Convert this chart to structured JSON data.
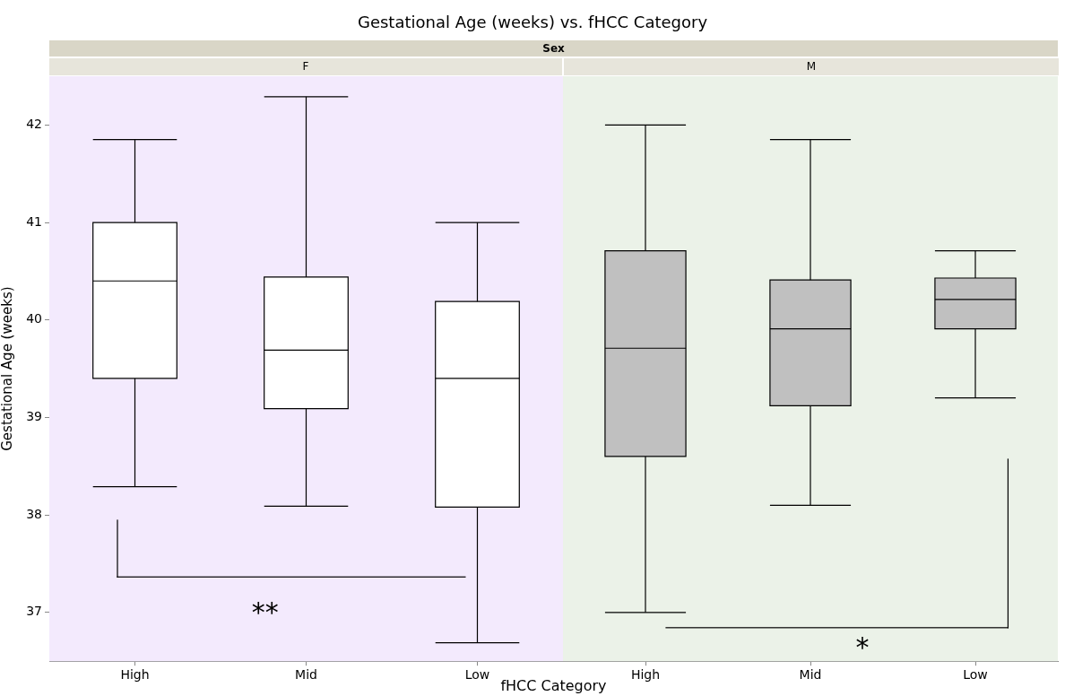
{
  "chart_data": [
    {
      "type": "box",
      "title": "Gestational Age (weeks) vs. fHCC Category",
      "subtitle": "Sex",
      "x2label": "F",
      "xlabel": "fHCC Category",
      "ylabel": "Gestational Age (weeks)",
      "categories": [
        "High",
        "Mid",
        "Low"
      ],
      "color": "#ffffff",
      "boxes": [
        {
          "low": 38.29,
          "q1": 39.4,
          "median": 40.4,
          "q3": 41.0,
          "high": 41.85
        },
        {
          "low": 38.09,
          "q1": 39.09,
          "median": 39.69,
          "q3": 40.44,
          "high": 42.29
        },
        {
          "low": 36.69,
          "q1": 38.08,
          "median": 39.4,
          "q3": 40.19,
          "high": 41.0
        }
      ],
      "ylim": [
        36.5,
        42.5
      ],
      "yticks": [
        37,
        38,
        39,
        40,
        41,
        42
      ],
      "annotations": [
        "**"
      ]
    },
    {
      "type": "box",
      "x2label": "M",
      "categories": [
        "High",
        "Mid",
        "Low"
      ],
      "color": "#c0c0c0",
      "boxes": [
        {
          "low": 37.0,
          "q1": 38.6,
          "median": 39.71,
          "q3": 40.71,
          "high": 42.0
        },
        {
          "low": 38.1,
          "q1": 39.12,
          "median": 39.91,
          "q3": 40.41,
          "high": 41.85
        },
        {
          "low": 39.2,
          "q1": 39.91,
          "median": 40.21,
          "q3": 40.43,
          "high": 40.71
        }
      ],
      "ylim": [
        36.5,
        42.5
      ],
      "yticks": [
        37,
        38,
        39,
        40,
        41,
        42
      ],
      "tick_labels": "x",
      "annotations": [
        "*"
      ]
    }
  ]
}
